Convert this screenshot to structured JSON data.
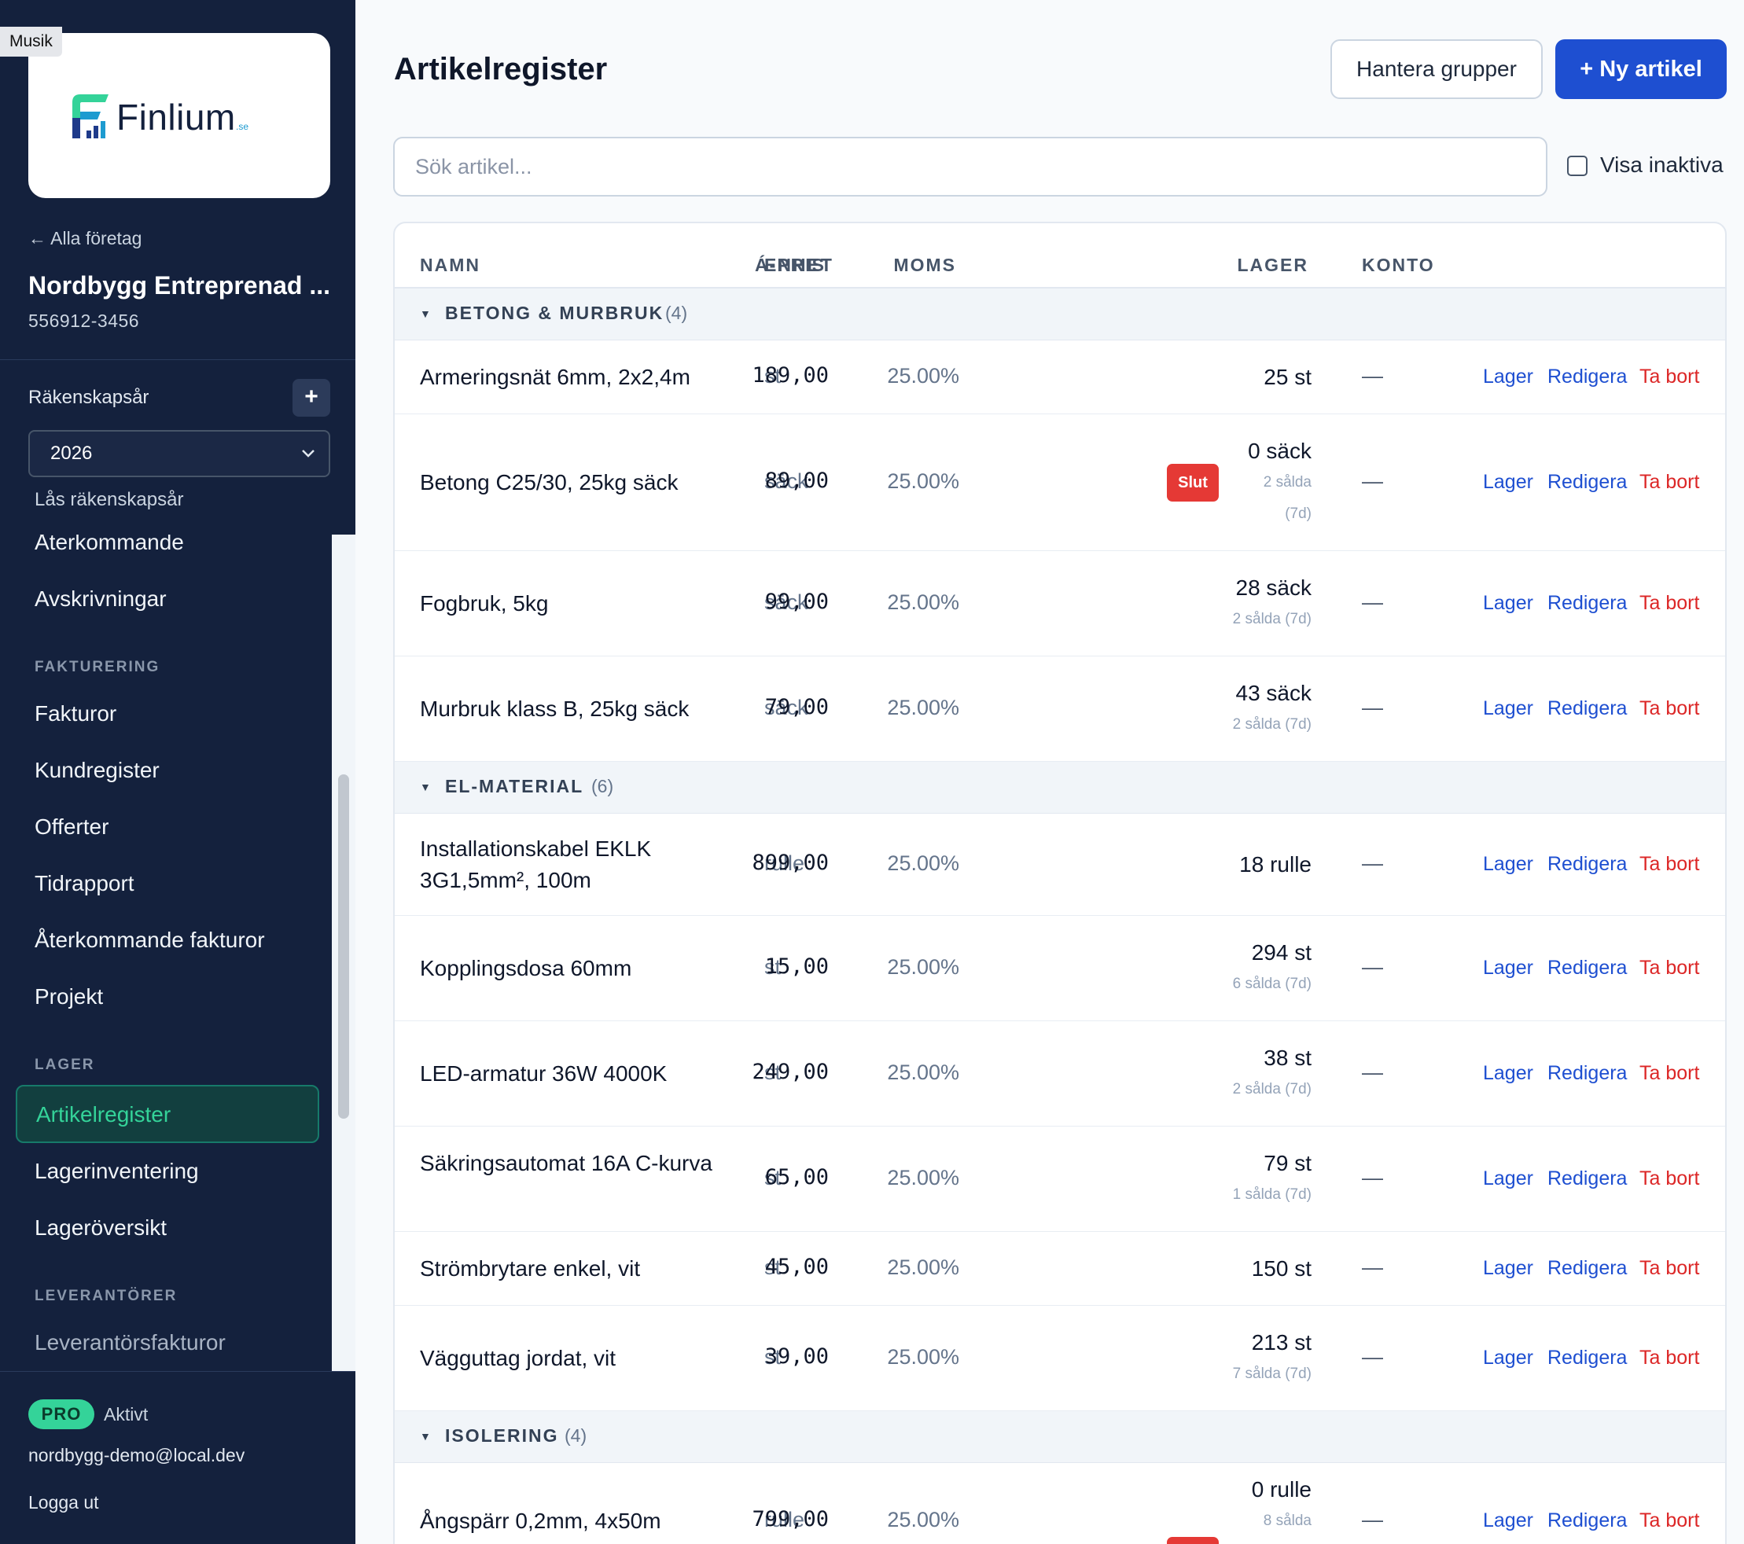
{
  "os": {
    "label": "Musik"
  },
  "sidebar": {
    "logo_text": "Finlium",
    "logo_sup": ".se",
    "back_link": "← Alla företag",
    "company_name": "Nordbygg Entreprenad ...",
    "org_nr": "556912-3456",
    "fiscal_year_label": "Räkenskapsår",
    "fiscal_year_add": "+",
    "fiscal_year_value": "2026",
    "lock_label": "Lås räkenskapsår",
    "nav": {
      "item_recurring": "Återkommande",
      "item_depreciation": "Avskrivningar",
      "section_invoicing": "FAKTURERING",
      "item_invoices": "Fakturor",
      "item_customers": "Kundregister",
      "item_quotes": "Offerter",
      "item_timesheet": "Tidrapport",
      "item_recurring_invoices": "Återkommande fakturor",
      "item_projects": "Projekt",
      "section_inventory": "LAGER",
      "item_articles": "Artikelregister",
      "item_stocktake": "Lagerinventering",
      "item_stock_overview": "Lageröversikt",
      "section_suppliers": "LEVERANTÖRER",
      "item_supplier_invoices": "Leverantörsfakturor"
    },
    "plan_badge": "PRO",
    "plan_status": "Aktivt",
    "user_email": "nordbygg-demo@local.dev",
    "logout": "Logga ut"
  },
  "main": {
    "title": "Artikelregister",
    "btn_groups": "Hantera grupper",
    "btn_new": "+ Ny artikel",
    "search_placeholder": "Sök artikel...",
    "show_inactive": "Visa inaktiva",
    "columns": {
      "name": "NAMN",
      "unit": "ENHET",
      "price": "Á-PRIS",
      "vat": "MOMS",
      "stock": "LAGER",
      "account": "KONTO"
    },
    "actions": {
      "lager": "Lager",
      "edit": "Redigera",
      "delete": "Ta bort"
    },
    "badge_out": "Slut",
    "groups": [
      {
        "name": "BETONG & MURBRUK",
        "count": "(4)",
        "rows": [
          {
            "name": "Armeringsnät 6mm, 2x2,4m",
            "unit": "st",
            "price": "189,00",
            "vat": "25.00%",
            "stock": "25 st",
            "sold": "",
            "account": "—"
          },
          {
            "name": "Betong C25/30, 25kg säck",
            "unit": "säck",
            "price": "89,00",
            "vat": "25.00%",
            "stock": "0 säck",
            "sold_a": "2 sålda",
            "sold_b": "(7d)",
            "account": "—"
          },
          {
            "name": "Fogbruk, 5kg",
            "unit": "säck",
            "price": "99,00",
            "vat": "25.00%",
            "stock": "28 säck",
            "sold": "2 sålda (7d)",
            "account": "—"
          },
          {
            "name": "Murbruk klass B, 25kg säck",
            "unit": "säck",
            "price": "79,00",
            "vat": "25.00%",
            "stock": "43 säck",
            "sold": "2 sålda (7d)",
            "account": "—"
          }
        ]
      },
      {
        "name": "EL-MATERIAL",
        "count": "(6)",
        "rows": [
          {
            "name": "Installationskabel EKLK 3G1,5mm², 100m",
            "unit": "rulle",
            "price": "899,00",
            "vat": "25.00%",
            "stock": "18 rulle",
            "sold": "",
            "account": "—"
          },
          {
            "name": "Kopplingsdosa 60mm",
            "unit": "st",
            "price": "15,00",
            "vat": "25.00%",
            "stock": "294 st",
            "sold": "6 sålda (7d)",
            "account": "—"
          },
          {
            "name": "LED-armatur 36W 4000K",
            "unit": "st",
            "price": "249,00",
            "vat": "25.00%",
            "stock": "38 st",
            "sold": "2 sålda (7d)",
            "account": "—"
          },
          {
            "name": "Säkringsautomat 16A C-kurva",
            "unit": "st",
            "price": "65,00",
            "vat": "25.00%",
            "stock": "79 st",
            "sold": "1 sålda (7d)",
            "account": "—"
          },
          {
            "name": "Strömbrytare enkel, vit",
            "unit": "st",
            "price": "45,00",
            "vat": "25.00%",
            "stock": "150 st",
            "sold": "",
            "account": "—"
          },
          {
            "name": "Vägguttag jordat, vit",
            "unit": "st",
            "price": "39,00",
            "vat": "25.00%",
            "stock": "213 st",
            "sold": "7 sålda (7d)",
            "account": "—"
          }
        ]
      },
      {
        "name": "ISOLERING",
        "count": "(4)",
        "rows": [
          {
            "name": "Ångspärr 0,2mm, 4x50m",
            "unit": "rulle",
            "price": "799,00",
            "vat": "25.00%",
            "stock": "0 rulle",
            "sold": "8 sålda",
            "account": "—"
          }
        ]
      }
    ]
  }
}
